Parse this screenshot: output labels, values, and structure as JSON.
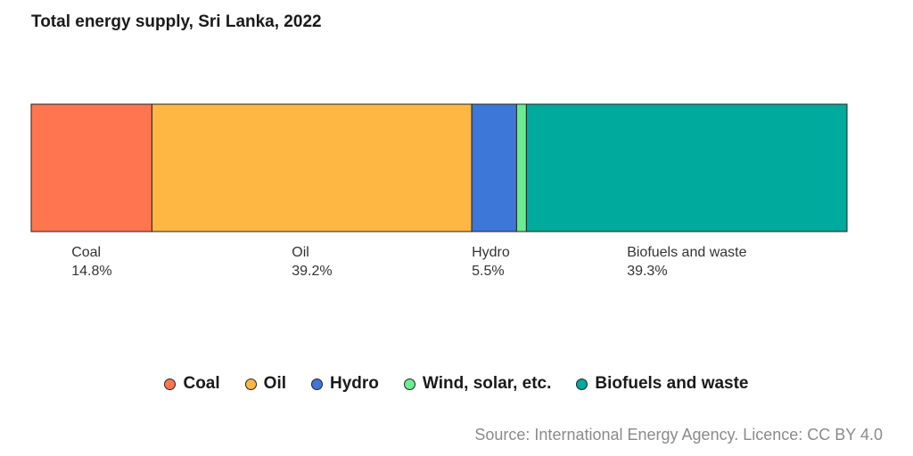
{
  "chart_data": {
    "type": "bar",
    "orientation": "horizontal-stacked",
    "title": "Total energy supply, Sri Lanka, 2022",
    "unit": "%",
    "categories": [
      "Coal",
      "Oil",
      "Hydro",
      "Wind, solar, etc.",
      "Biofuels and waste"
    ],
    "values": [
      14.8,
      39.2,
      5.5,
      1.2,
      39.3
    ],
    "series": [
      {
        "name": "Coal",
        "value": 14.8,
        "label": "14.8%",
        "color": "#ff7550"
      },
      {
        "name": "Oil",
        "value": 39.2,
        "label": "39.2%",
        "color": "#ffb744"
      },
      {
        "name": "Hydro",
        "value": 5.5,
        "label": "5.5%",
        "color": "#3d78d8"
      },
      {
        "name": "Wind, solar, etc.",
        "value": 1.2,
        "label": "",
        "color": "#6bec8f"
      },
      {
        "name": "Biofuels and waste",
        "value": 39.3,
        "label": "39.3%",
        "color": "#00aa9d"
      }
    ],
    "legend": {
      "position": "bottom-center",
      "entries": [
        "Coal",
        "Oil",
        "Hydro",
        "Wind, solar, etc.",
        "Biofuels and waste"
      ]
    },
    "grid": false,
    "source": "Source: International Energy Agency. Licence: CC BY 4.0"
  }
}
